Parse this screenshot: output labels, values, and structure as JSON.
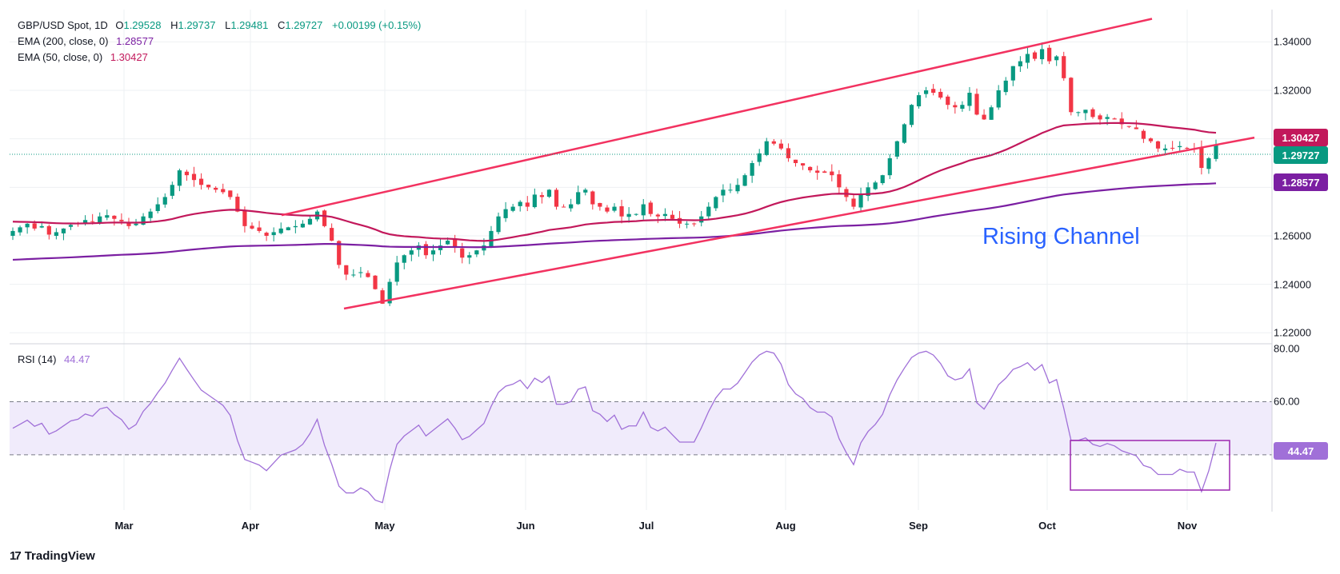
{
  "legend": {
    "symbol": "GBP/USD Spot, 1D",
    "o_key": "O",
    "o_val": "1.29528",
    "h_key": "H",
    "h_val": "1.29737",
    "l_key": "L",
    "l_val": "1.29481",
    "c_key": "C",
    "c_val": "1.29727",
    "change": "+0.00199 (+0.15%)",
    "ema200_label": "EMA (200, close, 0)",
    "ema200_val": "1.28577",
    "ema50_label": "EMA (50, close, 0)",
    "ema50_val": "1.30427",
    "rsi_label": "RSI (14)",
    "rsi_val": "44.47"
  },
  "badges": {
    "ema50": "1.30427",
    "close": "1.29727",
    "ema200": "1.28577",
    "rsi": "44.47"
  },
  "annotation": "Rising Channel",
  "brand": "TradingView",
  "colors": {
    "up": "#089981",
    "down": "#f23645",
    "ema50": "#c2185b",
    "ema200": "#7b1fa2",
    "channel": "#f23260",
    "rsi": "#a070d8",
    "rsi_band": "#f0ebfb",
    "annotation": "#2962ff"
  },
  "chart_data": [
    {
      "type": "candlestick",
      "title": "GBP/USD Spot, 1D",
      "x_labels": [
        "Mar",
        "Apr",
        "May",
        "Jun",
        "Jul",
        "Aug",
        "Sep",
        "Oct",
        "Nov"
      ],
      "y_ticks": [
        "1.34000",
        "1.32000",
        "1.30000",
        "1.28000",
        "1.26000",
        "1.24000",
        "1.22000"
      ],
      "ylim": [
        1.2168,
        1.3533
      ],
      "grid": true,
      "close_series": [
        1.262,
        1.2635,
        1.265,
        1.263,
        1.264,
        1.2605,
        1.2615,
        1.263,
        1.2645,
        1.265,
        1.2665,
        1.266,
        1.268,
        1.2685,
        1.267,
        1.266,
        1.264,
        1.265,
        1.268,
        1.27,
        1.273,
        1.276,
        1.281,
        1.287,
        1.285,
        1.283,
        1.281,
        1.28,
        1.279,
        1.278,
        1.276,
        1.27,
        1.264,
        1.263,
        1.262,
        1.26,
        1.2615,
        1.263,
        1.2635,
        1.264,
        1.265,
        1.267,
        1.27,
        1.264,
        1.258,
        1.248,
        1.244,
        1.244,
        1.245,
        1.243,
        1.238,
        1.232,
        1.241,
        1.249,
        1.252,
        1.254,
        1.256,
        1.252,
        1.254,
        1.256,
        1.258,
        1.255,
        1.251,
        1.252,
        1.254,
        1.256,
        1.262,
        1.268,
        1.271,
        1.272,
        1.274,
        1.272,
        1.277,
        1.276,
        1.279,
        1.272,
        1.272,
        1.273,
        1.278,
        1.279,
        1.273,
        1.272,
        1.27,
        1.272,
        1.268,
        1.269,
        1.269,
        1.273,
        1.269,
        1.268,
        1.269,
        1.267,
        1.265,
        1.265,
        1.265,
        1.268,
        1.272,
        1.276,
        1.279,
        1.279,
        1.281,
        1.285,
        1.29,
        1.294,
        1.299,
        1.298,
        1.296,
        1.292,
        1.29,
        1.289,
        1.287,
        1.286,
        1.286,
        1.285,
        1.28,
        1.276,
        1.272,
        1.277,
        1.28,
        1.282,
        1.285,
        1.292,
        1.299,
        1.306,
        1.314,
        1.318,
        1.32,
        1.319,
        1.317,
        1.314,
        1.313,
        1.314,
        1.319,
        1.31,
        1.308,
        1.313,
        1.32,
        1.324,
        1.33,
        1.332,
        1.335,
        1.333,
        1.337,
        1.332,
        1.334,
        1.325,
        1.311,
        1.311,
        1.312,
        1.309,
        1.308,
        1.309,
        1.308,
        1.306,
        1.305,
        1.304,
        1.3,
        1.299,
        1.296,
        1.296,
        1.296,
        1.297,
        1.296,
        1.296,
        1.288,
        1.292,
        1.2973
      ],
      "ema50_last": 1.30427,
      "ema200_last": 1.28577,
      "channel_upper": [
        [
          "Apr 9",
          1.2685
        ],
        [
          "Oct 30",
          1.3495
        ]
      ],
      "channel_lower": [
        [
          "Apr 22",
          1.23
        ],
        [
          "Nov 6",
          1.3005
        ]
      ]
    },
    {
      "type": "line",
      "title": "RSI (14)",
      "y_ticks": [
        "80.00",
        "60.00",
        "40.00"
      ],
      "ylim": [
        19.2,
        81.2
      ],
      "bands": [
        40,
        60
      ],
      "last_value": 44.47
    }
  ]
}
